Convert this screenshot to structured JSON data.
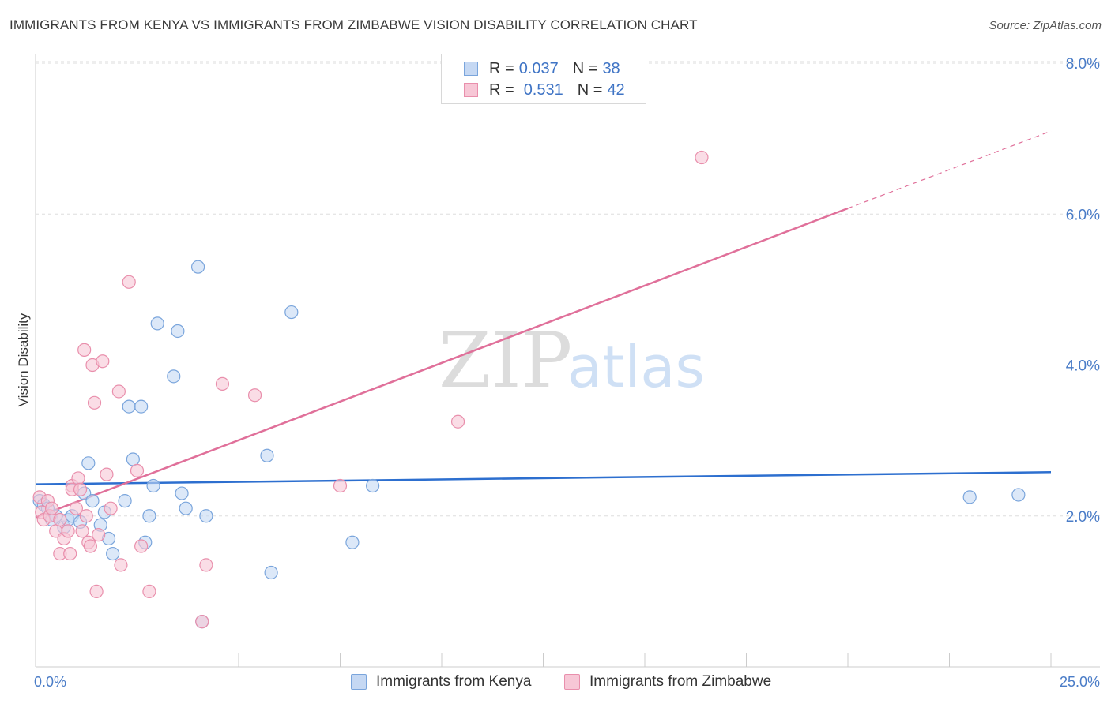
{
  "title": "IMMIGRANTS FROM KENYA VS IMMIGRANTS FROM ZIMBABWE VISION DISABILITY CORRELATION CHART",
  "source": "Source: ZipAtlas.com",
  "watermark": {
    "zip": "ZIP",
    "atlas": "atlas"
  },
  "legend": {
    "kenya": {
      "r_label": "R =",
      "r_value": "0.037",
      "n_label": "N =",
      "n_value": "38"
    },
    "zimbabwe": {
      "r_label": "R =",
      "r_value": "0.531",
      "n_label": "N =",
      "n_value": "42"
    }
  },
  "colors": {
    "kenya_fill": "#c5d8f3",
    "kenya_stroke": "#7aa5dc",
    "kenya_line": "#2d6fcf",
    "zimbabwe_fill": "#f7c7d6",
    "zimbabwe_stroke": "#e98fac",
    "zimbabwe_line": "#e0709a",
    "tick": "#4a7cc7",
    "grid": "#dddddd"
  },
  "chart_data": {
    "type": "scatter",
    "title": "IMMIGRANTS FROM KENYA VS IMMIGRANTS FROM ZIMBABWE VISION DISABILITY CORRELATION CHART",
    "xlabel": "",
    "ylabel": "Vision Disability",
    "xlim": [
      0,
      25
    ],
    "ylim": [
      0,
      8
    ],
    "x_tick_labels": [
      "0.0%",
      "25.0%"
    ],
    "y_ticks": [
      2,
      4,
      6,
      8
    ],
    "y_tick_labels": [
      "2.0%",
      "4.0%",
      "6.0%",
      "8.0%"
    ],
    "grid": true,
    "legend_position": "top-center",
    "series": [
      {
        "name": "Immigrants from Kenya",
        "r": 0.037,
        "n": 38,
        "points": [
          [
            0.1,
            2.2
          ],
          [
            0.2,
            2.15
          ],
          [
            0.3,
            2.1
          ],
          [
            0.4,
            1.95
          ],
          [
            0.5,
            2.0
          ],
          [
            0.7,
            1.85
          ],
          [
            0.8,
            1.95
          ],
          [
            0.9,
            2.0
          ],
          [
            1.1,
            1.92
          ],
          [
            1.2,
            2.3
          ],
          [
            1.3,
            2.7
          ],
          [
            1.4,
            2.2
          ],
          [
            1.6,
            1.88
          ],
          [
            1.7,
            2.05
          ],
          [
            1.8,
            1.7
          ],
          [
            1.9,
            1.5
          ],
          [
            2.2,
            2.2
          ],
          [
            2.3,
            3.45
          ],
          [
            2.4,
            2.75
          ],
          [
            2.6,
            3.45
          ],
          [
            2.7,
            1.65
          ],
          [
            2.8,
            2.0
          ],
          [
            2.9,
            2.4
          ],
          [
            3.0,
            4.55
          ],
          [
            3.4,
            3.85
          ],
          [
            3.5,
            4.45
          ],
          [
            3.6,
            2.3
          ],
          [
            3.7,
            2.1
          ],
          [
            4.0,
            5.3
          ],
          [
            4.1,
            0.6
          ],
          [
            4.2,
            2.0
          ],
          [
            5.7,
            2.8
          ],
          [
            5.8,
            1.25
          ],
          [
            6.3,
            4.7
          ],
          [
            7.8,
            1.65
          ],
          [
            8.3,
            2.4
          ],
          [
            23.0,
            2.25
          ],
          [
            24.2,
            2.28
          ]
        ],
        "trend": {
          "x": [
            0,
            25
          ],
          "y": [
            2.42,
            2.58
          ]
        }
      },
      {
        "name": "Immigrants from Zimbabwe",
        "r": 0.531,
        "n": 42,
        "points": [
          [
            0.1,
            2.25
          ],
          [
            0.15,
            2.05
          ],
          [
            0.2,
            1.95
          ],
          [
            0.3,
            2.2
          ],
          [
            0.35,
            2.0
          ],
          [
            0.4,
            2.1
          ],
          [
            0.5,
            1.8
          ],
          [
            0.6,
            1.95
          ],
          [
            0.6,
            1.5
          ],
          [
            0.7,
            1.7
          ],
          [
            0.8,
            1.8
          ],
          [
            0.85,
            1.5
          ],
          [
            0.9,
            2.4
          ],
          [
            0.9,
            2.35
          ],
          [
            1.0,
            2.1
          ],
          [
            1.05,
            2.5
          ],
          [
            1.1,
            2.35
          ],
          [
            1.15,
            1.8
          ],
          [
            1.2,
            4.2
          ],
          [
            1.25,
            2.0
          ],
          [
            1.3,
            1.65
          ],
          [
            1.35,
            1.6
          ],
          [
            1.4,
            4.0
          ],
          [
            1.45,
            3.5
          ],
          [
            1.5,
            1.0
          ],
          [
            1.55,
            1.75
          ],
          [
            1.65,
            4.05
          ],
          [
            1.75,
            2.55
          ],
          [
            1.85,
            2.1
          ],
          [
            2.05,
            3.65
          ],
          [
            2.1,
            1.35
          ],
          [
            2.3,
            5.1
          ],
          [
            2.5,
            2.6
          ],
          [
            2.6,
            1.6
          ],
          [
            2.8,
            1.0
          ],
          [
            4.1,
            0.6
          ],
          [
            4.2,
            1.35
          ],
          [
            4.6,
            3.75
          ],
          [
            5.4,
            3.6
          ],
          [
            7.5,
            2.4
          ],
          [
            10.4,
            3.25
          ],
          [
            16.4,
            6.75
          ]
        ],
        "trend": {
          "x": [
            0,
            25
          ],
          "y": [
            1.98,
            7.1
          ],
          "solid_until_x": 20
        }
      }
    ]
  },
  "bottom_legend": {
    "kenya": "Immigrants from Kenya",
    "zimbabwe": "Immigrants from Zimbabwe"
  }
}
